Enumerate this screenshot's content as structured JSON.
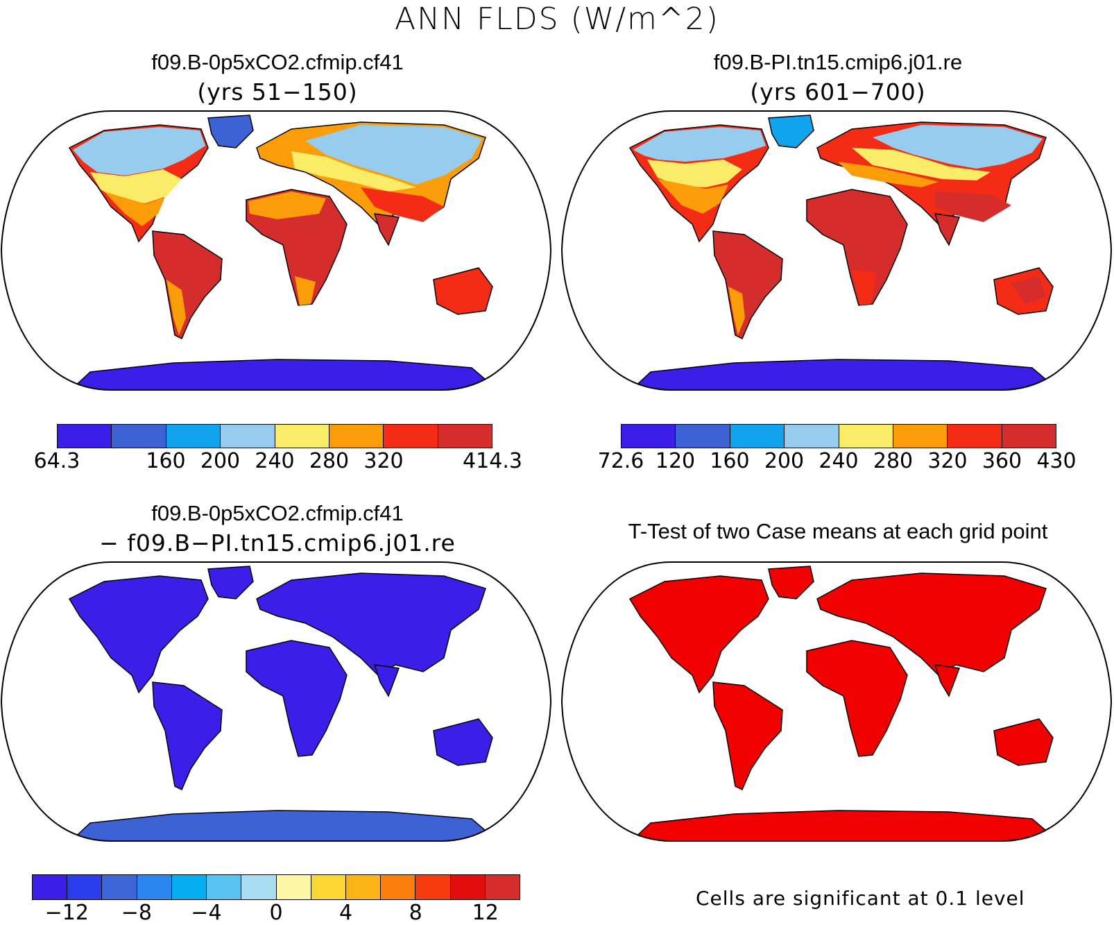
{
  "main_title": "ANN FLDS (W/m^2)",
  "panels": {
    "p1": {
      "title": "f09.B-0p5xCO2.cfmip.cf41",
      "subtitle": "(yrs 51−150)"
    },
    "p2": {
      "title": "f09.B-PI.tn15.cmip6.j01.re",
      "subtitle": "(yrs 601−700)"
    },
    "p3": {
      "title": "f09.B-0p5xCO2.cfmip.cf41",
      "subtitle": "− f09.B−PI.tn15.cmip6.j01.re"
    },
    "p4": {
      "title": "T-Test of two Case means at each grid point",
      "note": "Cells are significant at 0.1 level"
    }
  },
  "colorbars": {
    "cb1": {
      "colors": [
        "#3b1ee8",
        "#3d62d6",
        "#12a3ee",
        "#96cdee",
        "#fbec68",
        "#fa9d08",
        "#f52c15",
        "#d42d2c"
      ],
      "ticks": [
        {
          "b": 0,
          "label": "64.3"
        },
        {
          "b": 2,
          "label": "160"
        },
        {
          "b": 3,
          "label": "200"
        },
        {
          "b": 4,
          "label": "240"
        },
        {
          "b": 5,
          "label": "280"
        },
        {
          "b": 6,
          "label": "320"
        },
        {
          "b": 8,
          "label": "414.3"
        }
      ]
    },
    "cb2": {
      "colors": [
        "#3b1ee8",
        "#3d62d6",
        "#12a3ee",
        "#96cdee",
        "#fbec68",
        "#fa9d08",
        "#f52c15",
        "#d42d2c"
      ],
      "ticks": [
        {
          "b": 0,
          "label": "72.6"
        },
        {
          "b": 1,
          "label": "120"
        },
        {
          "b": 2,
          "label": "160"
        },
        {
          "b": 3,
          "label": "200"
        },
        {
          "b": 4,
          "label": "240"
        },
        {
          "b": 5,
          "label": "280"
        },
        {
          "b": 6,
          "label": "320"
        },
        {
          "b": 7,
          "label": "360"
        },
        {
          "b": 8,
          "label": "430"
        }
      ]
    },
    "cb3": {
      "colors": [
        "#3b1ee8",
        "#2a3ded",
        "#3d66d8",
        "#2b86ee",
        "#06aef0",
        "#58c3f0",
        "#a9dbf1",
        "#fdf6a4",
        "#fbd635",
        "#fbb316",
        "#fa7f0c",
        "#f63b0e",
        "#e20d0c",
        "#d42d2c"
      ],
      "ticks": [
        {
          "b": 1,
          "label": "−12"
        },
        {
          "b": 3,
          "label": "−8"
        },
        {
          "b": 5,
          "label": "−4"
        },
        {
          "b": 7,
          "label": "0"
        },
        {
          "b": 9,
          "label": "4"
        },
        {
          "b": 11,
          "label": "8"
        },
        {
          "b": 13,
          "label": "12"
        }
      ]
    }
  },
  "map_colors": {
    "outline": "#000000",
    "diff_fill": "#3b1ee8",
    "sig_fill": "#f20000"
  }
}
